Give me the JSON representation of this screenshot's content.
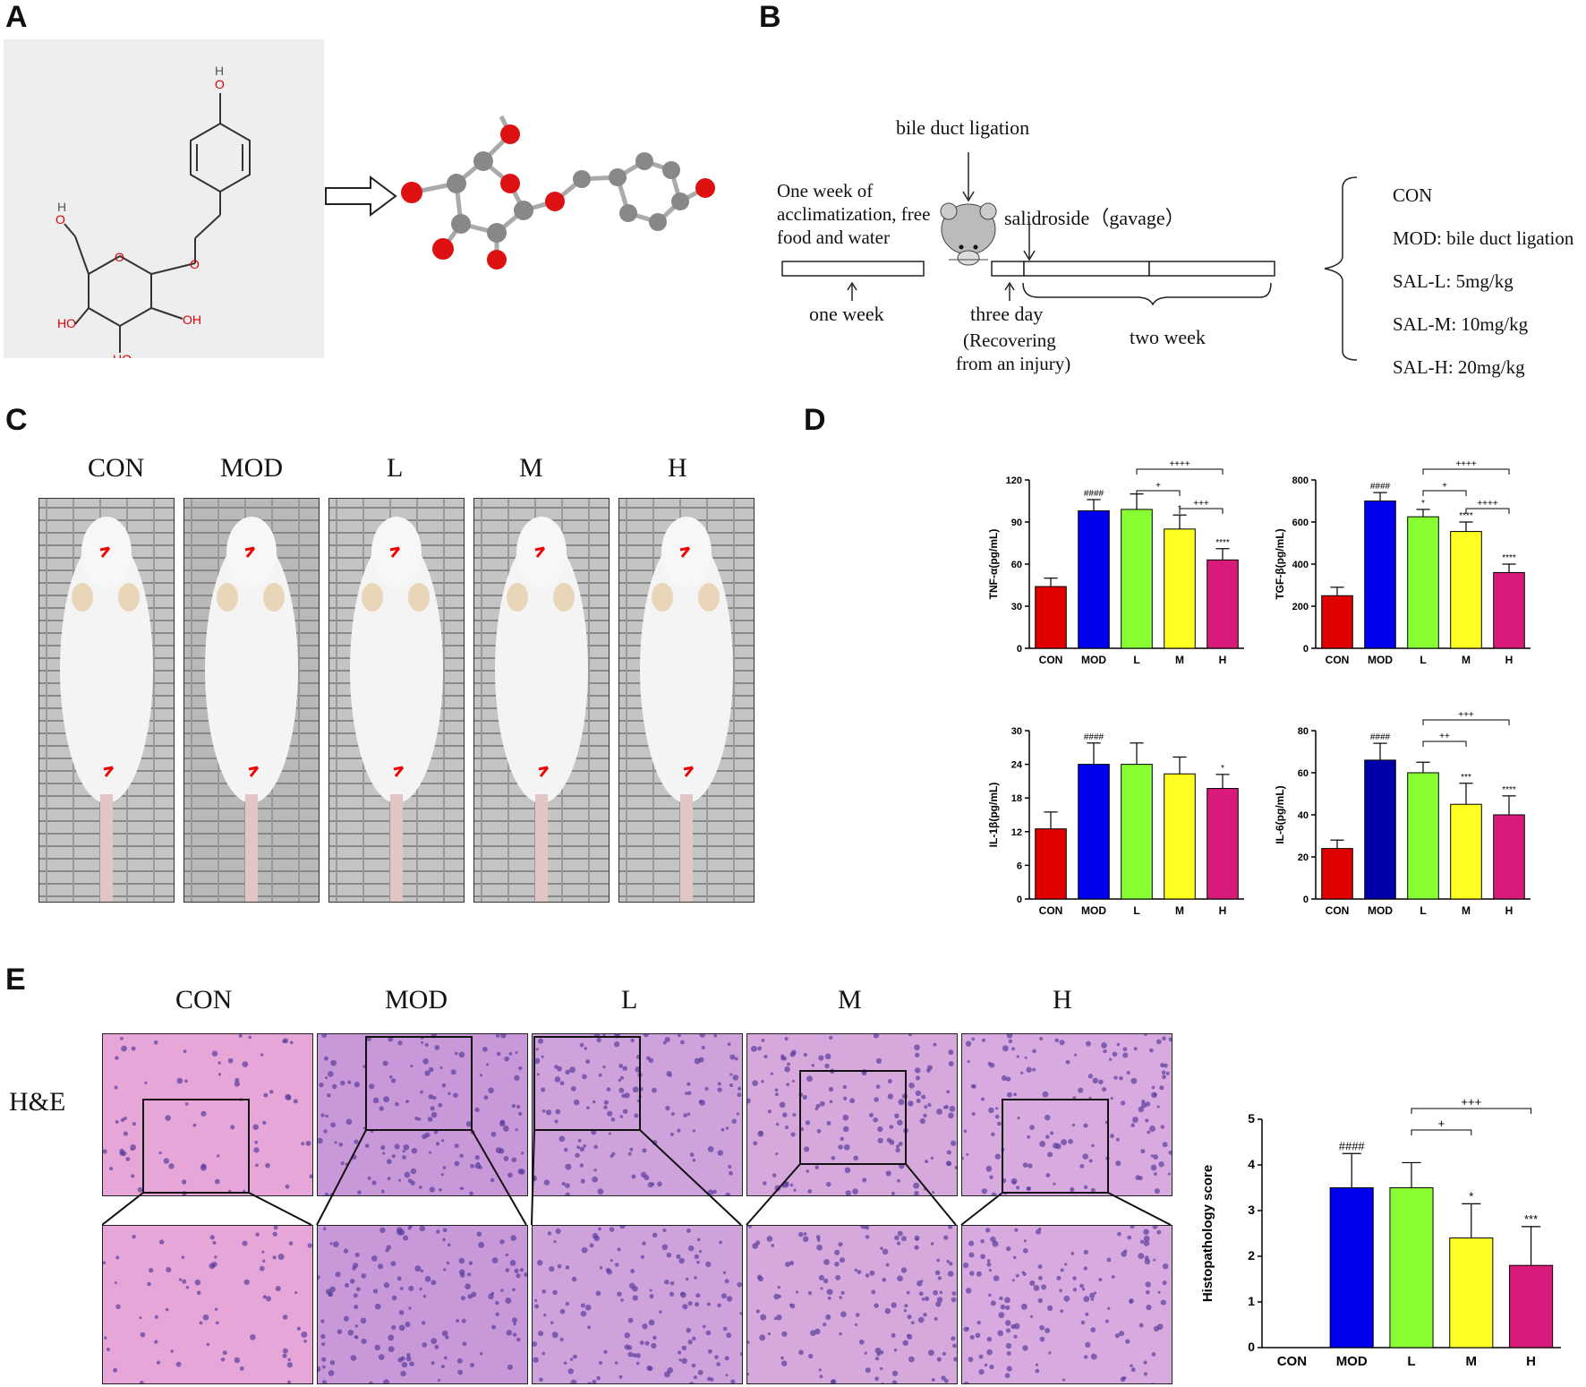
{
  "panels": {
    "A": "A",
    "B": "B",
    "C": "C",
    "D": "D",
    "E": "E"
  },
  "panelB": {
    "bile_duct_ligation": "bile duct ligation",
    "acclimatization_line1": "One week of",
    "acclimatization_line2": "acclimatization, free",
    "acclimatization_line3": "food and water",
    "salidroside": "salidroside（gavage）",
    "one_week": "one week",
    "three_day": "three day",
    "recovering_line1": "(Recovering",
    "recovering_line2": "from an injury)",
    "two_week": "two week",
    "groups": [
      "CON",
      "MOD: bile duct ligation",
      "SAL-L: 5mg/kg",
      "SAL-M: 10mg/kg",
      "SAL-H: 20mg/kg"
    ]
  },
  "panelC": {
    "labels": [
      "CON",
      "MOD",
      "L",
      "M",
      "H"
    ]
  },
  "panelE": {
    "labels": [
      "CON",
      "MOD",
      "L",
      "M",
      "H"
    ],
    "stain": "H&E"
  },
  "colors": {
    "CON": "#e00000",
    "MOD": "#0000ee",
    "L": "#88ff33",
    "M": "#ffff22",
    "H": "#d81b7a",
    "MOD_IL6": "#0000aa"
  },
  "chart_data": [
    {
      "type": "bar",
      "ylabel": "TNF-α(pg/mL)",
      "categories": [
        "CON",
        "MOD",
        "L",
        "M",
        "H"
      ],
      "values": [
        44,
        98,
        99,
        85,
        63
      ],
      "errors": [
        6,
        8,
        11,
        10,
        8
      ],
      "ylim": [
        0,
        120
      ],
      "yticks": [
        0,
        30,
        60,
        90,
        120
      ],
      "annotations": [
        "",
        "####",
        "",
        "*",
        "****"
      ],
      "brackets": [
        {
          "from": 2,
          "to": 3,
          "label": "+"
        },
        {
          "from": 3,
          "to": 4,
          "label": "+++"
        },
        {
          "from": 2,
          "to": 4,
          "label": "++++"
        }
      ]
    },
    {
      "type": "bar",
      "ylabel": "TGF-β(pg/mL)",
      "categories": [
        "CON",
        "MOD",
        "L",
        "M",
        "H"
      ],
      "values": [
        250,
        700,
        625,
        555,
        360
      ],
      "errors": [
        40,
        40,
        35,
        45,
        40
      ],
      "ylim": [
        0,
        800
      ],
      "yticks": [
        0,
        200,
        400,
        600,
        800
      ],
      "annotations": [
        "",
        "####",
        "*",
        "****",
        "****"
      ],
      "brackets": [
        {
          "from": 2,
          "to": 3,
          "label": "+"
        },
        {
          "from": 3,
          "to": 4,
          "label": "++++"
        },
        {
          "from": 2,
          "to": 4,
          "label": "++++"
        }
      ]
    },
    {
      "type": "bar",
      "ylabel": "IL-1β(pg/mL)",
      "categories": [
        "CON",
        "MOD",
        "L",
        "M",
        "H"
      ],
      "values": [
        12.5,
        24,
        24,
        22.3,
        19.7
      ],
      "errors": [
        3,
        3.8,
        3.8,
        3,
        2.5
      ],
      "ylim": [
        0,
        30
      ],
      "yticks": [
        0,
        6,
        12,
        18,
        24,
        30
      ],
      "annotations": [
        "",
        "####",
        "",
        "",
        "*"
      ],
      "brackets": []
    },
    {
      "type": "bar",
      "ylabel": "IL-6(pg/mL)",
      "categories": [
        "CON",
        "MOD",
        "L",
        "M",
        "H"
      ],
      "values": [
        24,
        66,
        60,
        45,
        40
      ],
      "errors": [
        4,
        8,
        5,
        10,
        9
      ],
      "ylim": [
        0,
        80
      ],
      "yticks": [
        0,
        20,
        40,
        60,
        80
      ],
      "annotations": [
        "",
        "####",
        "",
        "***",
        "****"
      ],
      "brackets": [
        {
          "from": 2,
          "to": 3,
          "label": "++"
        },
        {
          "from": 2,
          "to": 4,
          "label": "+++"
        }
      ]
    },
    {
      "type": "bar",
      "ylabel": "Histopathology score",
      "categories": [
        "CON",
        "MOD",
        "L",
        "M",
        "H"
      ],
      "values": [
        0,
        3.5,
        3.5,
        2.4,
        1.8
      ],
      "errors": [
        0,
        0.75,
        0.55,
        0.75,
        0.85
      ],
      "ylim": [
        0,
        5
      ],
      "yticks": [
        0,
        1,
        2,
        3,
        4,
        5
      ],
      "annotations": [
        "",
        "####",
        "",
        "*",
        "***"
      ],
      "brackets": [
        {
          "from": 2,
          "to": 3,
          "label": "+"
        },
        {
          "from": 2,
          "to": 4,
          "label": "+++"
        }
      ]
    }
  ]
}
